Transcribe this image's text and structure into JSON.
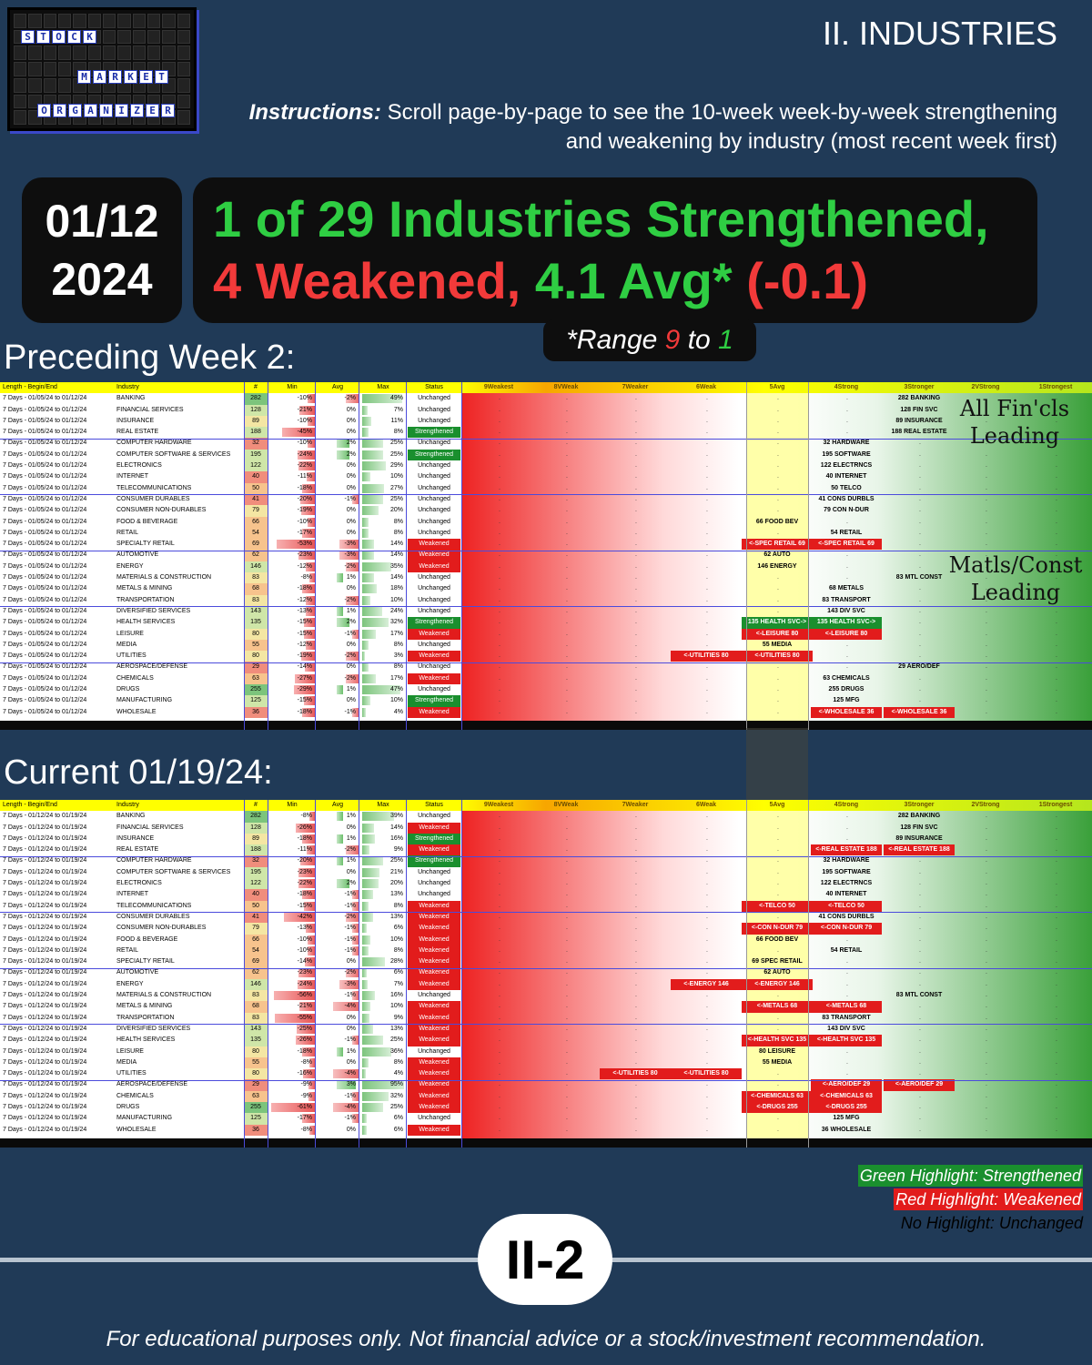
{
  "logo": {
    "rows": [
      [
        "S",
        "T",
        "O",
        "C",
        "K"
      ],
      [
        "M",
        "A",
        "R",
        "K",
        "E",
        "T"
      ],
      [
        "O",
        "R",
        "G",
        "A",
        "N",
        "I",
        "Z",
        "E",
        "R"
      ]
    ]
  },
  "header": {
    "section": "II. INDUSTRIES",
    "instructions_label": "Instructions:",
    "instructions_text": " Scroll page-by-page to see the 10-week week-by-week strengthening and weakening by industry (most recent week first)"
  },
  "date": {
    "day": "01/12",
    "year": "2024"
  },
  "headline": {
    "line1": "1 of 29 Industries Strengthened,",
    "line2a": "4 Weakened, ",
    "line2b": "4.1 Avg*",
    "line2c": " (-0.1)"
  },
  "range": {
    "prefix": "*Range ",
    "low": "9",
    "mid": " to ",
    "high": "1"
  },
  "columns": {
    "len": "Length - Begin/End",
    "ind": "Industry",
    "num": "#",
    "min": "Min",
    "avg": "Avg",
    "max": "Max",
    "status": "Status",
    "zones": [
      "9Weakest",
      "8VWeak",
      "7Weaker",
      "6Weak",
      "5Avg",
      "4Strong",
      "3Stronger",
      "2VStrong",
      "1Strongest"
    ]
  },
  "preceding": {
    "title": "Preceding Week 2:",
    "annotations": [
      "All Fin'cls Leading",
      "Matls/Const Leading"
    ],
    "rows": [
      {
        "len": "7 Days - 01/05/24 to 01/12/24",
        "ind": "BANKING",
        "num": "282",
        "min": "-10%",
        "avg": "-2%",
        "max": "49%",
        "status": "Unchanged",
        "z4": "",
        "z3": "282 BANKING"
      },
      {
        "len": "7 Days - 01/05/24 to 01/12/24",
        "ind": "FINANCIAL SERVICES",
        "num": "128",
        "min": "-21%",
        "avg": "0%",
        "max": "7%",
        "status": "Unchanged",
        "z3": "128 FIN SVC"
      },
      {
        "len": "7 Days - 01/05/24 to 01/12/24",
        "ind": "INSURANCE",
        "num": "89",
        "min": "-10%",
        "avg": "0%",
        "max": "11%",
        "status": "Unchanged",
        "z3": "89 INSURANCE"
      },
      {
        "len": "7 Days - 01/05/24 to 01/12/24",
        "ind": "REAL ESTATE",
        "num": "188",
        "min": "-45%",
        "avg": "0%",
        "max": "8%",
        "status": "Strengthened",
        "z3": "188 REAL ESTATE"
      },
      {
        "len": "7 Days - 01/05/24 to 01/12/24",
        "ind": "COMPUTER HARDWARE",
        "num": "32",
        "min": "-10%",
        "avg": "2%",
        "max": "25%",
        "status": "Unchanged",
        "z4": "32 HARDWARE"
      },
      {
        "len": "7 Days - 01/05/24 to 01/12/24",
        "ind": "COMPUTER SOFTWARE & SERVICES",
        "num": "195",
        "min": "-24%",
        "avg": "2%",
        "max": "25%",
        "status": "Strengthened",
        "z4": "195 SOFTWARE"
      },
      {
        "len": "7 Days - 01/05/24 to 01/12/24",
        "ind": "ELECTRONICS",
        "num": "122",
        "min": "-22%",
        "avg": "0%",
        "max": "29%",
        "status": "Unchanged",
        "z4": "122 ELECTRNCS"
      },
      {
        "len": "7 Days - 01/05/24 to 01/12/24",
        "ind": "INTERNET",
        "num": "40",
        "min": "-11%",
        "avg": "0%",
        "max": "10%",
        "status": "Unchanged",
        "z4": "40 INTERNET"
      },
      {
        "len": "7 Days - 01/05/24 to 01/12/24",
        "ind": "TELECOMMUNICATIONS",
        "num": "50",
        "min": "-18%",
        "avg": "0%",
        "max": "27%",
        "status": "Unchanged",
        "z4": "50 TELCO"
      },
      {
        "len": "7 Days - 01/05/24 to 01/12/24",
        "ind": "CONSUMER DURABLES",
        "num": "41",
        "min": "-20%",
        "avg": "-1%",
        "max": "25%",
        "status": "Unchanged",
        "z4": "41 CONS DURBLS"
      },
      {
        "len": "7 Days - 01/05/24 to 01/12/24",
        "ind": "CONSUMER NON-DURABLES",
        "num": "79",
        "min": "-19%",
        "avg": "0%",
        "max": "20%",
        "status": "Unchanged",
        "z4": "79 CON N-DUR"
      },
      {
        "len": "7 Days - 01/05/24 to 01/12/24",
        "ind": "FOOD & BEVERAGE",
        "num": "66",
        "min": "-10%",
        "avg": "0%",
        "max": "8%",
        "status": "Unchanged",
        "z5": "66 FOOD BEV"
      },
      {
        "len": "7 Days - 01/05/24 to 01/12/24",
        "ind": "RETAIL",
        "num": "54",
        "min": "-17%",
        "avg": "0%",
        "max": "8%",
        "status": "Unchanged",
        "z4": "54 RETAIL"
      },
      {
        "len": "7 Days - 01/05/24 to 01/12/24",
        "ind": "SPECIALTY RETAIL",
        "num": "69",
        "min": "-53%",
        "avg": "-3%",
        "max": "14%",
        "status": "Weakened",
        "z5": "<-SPEC RETAIL 69",
        "z5t": "r",
        "z4": "<-SPEC RETAIL 69",
        "z4t": "r"
      },
      {
        "len": "7 Days - 01/05/24 to 01/12/24",
        "ind": "AUTOMOTIVE",
        "num": "62",
        "min": "-23%",
        "avg": "-3%",
        "max": "14%",
        "status": "Weakened",
        "z5": "62 AUTO"
      },
      {
        "len": "7 Days - 01/05/24 to 01/12/24",
        "ind": "ENERGY",
        "num": "146",
        "min": "-12%",
        "avg": "-2%",
        "max": "35%",
        "status": "Weakened",
        "z5": "146 ENERGY"
      },
      {
        "len": "7 Days - 01/05/24 to 01/12/24",
        "ind": "MATERIALS & CONSTRUCTION",
        "num": "83",
        "min": "-8%",
        "avg": "1%",
        "max": "14%",
        "status": "Unchanged",
        "z3": "83 MTL CONST"
      },
      {
        "len": "7 Days - 01/05/24 to 01/12/24",
        "ind": "METALS & MINING",
        "num": "68",
        "min": "-18%",
        "avg": "0%",
        "max": "18%",
        "status": "Unchanged",
        "z4": "68 METALS"
      },
      {
        "len": "7 Days - 01/05/24 to 01/12/24",
        "ind": "TRANSPORTATION",
        "num": "83",
        "min": "-12%",
        "avg": "-2%",
        "max": "10%",
        "status": "Unchanged",
        "z4": "83 TRANSPORT"
      },
      {
        "len": "7 Days - 01/05/24 to 01/12/24",
        "ind": "DIVERSIFIED SERVICES",
        "num": "143",
        "min": "-13%",
        "avg": "1%",
        "max": "24%",
        "status": "Unchanged",
        "z4": "143 DIV SVC"
      },
      {
        "len": "7 Days - 01/05/24 to 01/12/24",
        "ind": "HEALTH SERVICES",
        "num": "135",
        "min": "-15%",
        "avg": "2%",
        "max": "32%",
        "status": "Strengthened",
        "z5": "135 HEALTH SVC->",
        "z5t": "g",
        "z4": "135 HEALTH SVC->",
        "z4t": "g"
      },
      {
        "len": "7 Days - 01/05/24 to 01/12/24",
        "ind": "LEISURE",
        "num": "80",
        "min": "-15%",
        "avg": "-1%",
        "max": "17%",
        "status": "Weakened",
        "z5": "<-LEISURE 80",
        "z5t": "r",
        "z4": "<-LEISURE 80",
        "z4t": "r"
      },
      {
        "len": "7 Days - 01/05/24 to 01/12/24",
        "ind": "MEDIA",
        "num": "55",
        "min": "-12%",
        "avg": "0%",
        "max": "8%",
        "status": "Unchanged",
        "z5": "55 MEDIA"
      },
      {
        "len": "7 Days - 01/05/24 to 01/12/24",
        "ind": "UTILITIES",
        "num": "80",
        "min": "-19%",
        "avg": "-2%",
        "max": "3%",
        "status": "Weakened",
        "z6": "<-UTILITIES 80",
        "z6t": "r",
        "z5": "<-UTILITIES 80",
        "z5t": "r"
      },
      {
        "len": "7 Days - 01/05/24 to 01/12/24",
        "ind": "AEROSPACE/DEFENSE",
        "num": "29",
        "min": "-14%",
        "avg": "0%",
        "max": "8%",
        "status": "Unchanged",
        "z3": "29 AERO/DEF"
      },
      {
        "len": "7 Days - 01/05/24 to 01/12/24",
        "ind": "CHEMICALS",
        "num": "63",
        "min": "-27%",
        "avg": "-2%",
        "max": "17%",
        "status": "Weakened",
        "z4": "63 CHEMICALS"
      },
      {
        "len": "7 Days - 01/05/24 to 01/12/24",
        "ind": "DRUGS",
        "num": "255",
        "min": "-29%",
        "avg": "1%",
        "max": "47%",
        "status": "Unchanged",
        "z4": "255 DRUGS"
      },
      {
        "len": "7 Days - 01/05/24 to 01/12/24",
        "ind": "MANUFACTURING",
        "num": "125",
        "min": "-15%",
        "avg": "0%",
        "max": "10%",
        "status": "Strengthened",
        "z4": "125 MFG"
      },
      {
        "len": "7 Days - 01/05/24 to 01/12/24",
        "ind": "WHOLESALE",
        "num": "36",
        "min": "-18%",
        "avg": "-1%",
        "max": "4%",
        "status": "Weakened",
        "z4": "<-WHOLESALE 36",
        "z4t": "r",
        "z3": "<-WHOLESALE 36",
        "z3t": "r"
      }
    ]
  },
  "current": {
    "title": "Current 01/19/24:",
    "rows": [
      {
        "len": "7 Days - 01/12/24 to 01/19/24",
        "ind": "BANKING",
        "num": "282",
        "min": "-8%",
        "avg": "1%",
        "max": "39%",
        "status": "Unchanged",
        "z3": "282 BANKING"
      },
      {
        "len": "7 Days - 01/12/24 to 01/19/24",
        "ind": "FINANCIAL SERVICES",
        "num": "128",
        "min": "-26%",
        "avg": "0%",
        "max": "14%",
        "status": "Weakened",
        "z3": "128 FIN SVC"
      },
      {
        "len": "7 Days - 01/12/24 to 01/19/24",
        "ind": "INSURANCE",
        "num": "89",
        "min": "-18%",
        "avg": "1%",
        "max": "16%",
        "status": "Strengthened",
        "z3": "89 INSURANCE"
      },
      {
        "len": "7 Days - 01/12/24 to 01/19/24",
        "ind": "REAL ESTATE",
        "num": "188",
        "min": "-11%",
        "avg": "-2%",
        "max": "9%",
        "status": "Weakened",
        "z4": "<-REAL ESTATE 188",
        "z4t": "r",
        "z3": "<-REAL ESTATE 188",
        "z3t": "r"
      },
      {
        "len": "7 Days - 01/12/24 to 01/19/24",
        "ind": "COMPUTER HARDWARE",
        "num": "32",
        "min": "-20%",
        "avg": "1%",
        "max": "25%",
        "status": "Strengthened",
        "z4": "32 HARDWARE"
      },
      {
        "len": "7 Days - 01/12/24 to 01/19/24",
        "ind": "COMPUTER SOFTWARE & SERVICES",
        "num": "195",
        "min": "-23%",
        "avg": "0%",
        "max": "21%",
        "status": "Unchanged",
        "z4": "195 SOFTWARE"
      },
      {
        "len": "7 Days - 01/12/24 to 01/19/24",
        "ind": "ELECTRONICS",
        "num": "122",
        "min": "-22%",
        "avg": "2%",
        "max": "20%",
        "status": "Unchanged",
        "z4": "122 ELECTRNCS"
      },
      {
        "len": "7 Days - 01/12/24 to 01/19/24",
        "ind": "INTERNET",
        "num": "40",
        "min": "-18%",
        "avg": "-1%",
        "max": "13%",
        "status": "Unchanged",
        "z4": "40 INTERNET"
      },
      {
        "len": "7 Days - 01/12/24 to 01/19/24",
        "ind": "TELECOMMUNICATIONS",
        "num": "50",
        "min": "-15%",
        "avg": "-1%",
        "max": "8%",
        "status": "Weakened",
        "z5": "<-TELCO 50",
        "z5t": "r",
        "z4": "<-TELCO 50",
        "z4t": "r"
      },
      {
        "len": "7 Days - 01/12/24 to 01/19/24",
        "ind": "CONSUMER DURABLES",
        "num": "41",
        "min": "-42%",
        "avg": "-2%",
        "max": "13%",
        "status": "Weakened",
        "z4": "41 CONS DURBLS"
      },
      {
        "len": "7 Days - 01/12/24 to 01/19/24",
        "ind": "CONSUMER NON-DURABLES",
        "num": "79",
        "min": "-13%",
        "avg": "-1%",
        "max": "6%",
        "status": "Weakened",
        "z5": "<-CON N-DUR 79",
        "z5t": "r",
        "z4": "<-CON N-DUR 79",
        "z4t": "r"
      },
      {
        "len": "7 Days - 01/12/24 to 01/19/24",
        "ind": "FOOD & BEVERAGE",
        "num": "66",
        "min": "-10%",
        "avg": "-1%",
        "max": "10%",
        "status": "Weakened",
        "z5": "66 FOOD BEV"
      },
      {
        "len": "7 Days - 01/12/24 to 01/19/24",
        "ind": "RETAIL",
        "num": "54",
        "min": "-10%",
        "avg": "-1%",
        "max": "8%",
        "status": "Weakened",
        "z4": "54 RETAIL"
      },
      {
        "len": "7 Days - 01/12/24 to 01/19/24",
        "ind": "SPECIALTY RETAIL",
        "num": "69",
        "min": "-14%",
        "avg": "0%",
        "max": "28%",
        "status": "Weakened",
        "z5": "69 SPEC RETAIL"
      },
      {
        "len": "7 Days - 01/12/24 to 01/19/24",
        "ind": "AUTOMOTIVE",
        "num": "62",
        "min": "-23%",
        "avg": "-2%",
        "max": "6%",
        "status": "Weakened",
        "z5": "62 AUTO"
      },
      {
        "len": "7 Days - 01/12/24 to 01/19/24",
        "ind": "ENERGY",
        "num": "146",
        "min": "-24%",
        "avg": "-3%",
        "max": "7%",
        "status": "Weakened",
        "z6": "<-ENERGY 146",
        "z6t": "r",
        "z5": "<-ENERGY 146",
        "z5t": "r"
      },
      {
        "len": "7 Days - 01/12/24 to 01/19/24",
        "ind": "MATERIALS & CONSTRUCTION",
        "num": "83",
        "min": "-56%",
        "avg": "-1%",
        "max": "16%",
        "status": "Unchanged",
        "z3": "83 MTL CONST"
      },
      {
        "len": "7 Days - 01/12/24 to 01/19/24",
        "ind": "METALS & MINING",
        "num": "68",
        "min": "-21%",
        "avg": "-4%",
        "max": "10%",
        "status": "Weakened",
        "z5": "<-METALS 68",
        "z5t": "r",
        "z4": "<-METALS 68",
        "z4t": "r"
      },
      {
        "len": "7 Days - 01/12/24 to 01/19/24",
        "ind": "TRANSPORTATION",
        "num": "83",
        "min": "-55%",
        "avg": "0%",
        "max": "9%",
        "status": "Weakened",
        "z4": "83 TRANSPORT"
      },
      {
        "len": "7 Days - 01/12/24 to 01/19/24",
        "ind": "DIVERSIFIED SERVICES",
        "num": "143",
        "min": "-25%",
        "avg": "0%",
        "max": "13%",
        "status": "Weakened",
        "z4": "143 DIV SVC"
      },
      {
        "len": "7 Days - 01/12/24 to 01/19/24",
        "ind": "HEALTH SERVICES",
        "num": "135",
        "min": "-26%",
        "avg": "-1%",
        "max": "25%",
        "status": "Weakened",
        "z5": "<-HEALTH SVC 135",
        "z5t": "r",
        "z4": "<-HEALTH SVC 135",
        "z4t": "r"
      },
      {
        "len": "7 Days - 01/12/24 to 01/19/24",
        "ind": "LEISURE",
        "num": "80",
        "min": "-18%",
        "avg": "1%",
        "max": "36%",
        "status": "Unchanged",
        "z5": "80 LEISURE"
      },
      {
        "len": "7 Days - 01/12/24 to 01/19/24",
        "ind": "MEDIA",
        "num": "55",
        "min": "-8%",
        "avg": "0%",
        "max": "8%",
        "status": "Weakened",
        "z5": "55 MEDIA"
      },
      {
        "len": "7 Days - 01/12/24 to 01/19/24",
        "ind": "UTILITIES",
        "num": "80",
        "min": "-16%",
        "avg": "-4%",
        "max": "4%",
        "status": "Weakened",
        "z7": "<-UTILITIES 80",
        "z7t": "r",
        "z6": "<-UTILITIES 80",
        "z6t": "r"
      },
      {
        "len": "7 Days - 01/12/24 to 01/19/24",
        "ind": "AEROSPACE/DEFENSE",
        "num": "29",
        "min": "-9%",
        "avg": "3%",
        "max": "95%",
        "status": "Weakened",
        "z4": "<-AERO/DEF 29",
        "z4t": "r",
        "z3": "<-AERO/DEF 29",
        "z3t": "r"
      },
      {
        "len": "7 Days - 01/12/24 to 01/19/24",
        "ind": "CHEMICALS",
        "num": "63",
        "min": "-9%",
        "avg": "-1%",
        "max": "32%",
        "status": "Weakened",
        "z5": "<-CHEMICALS 63",
        "z5t": "r",
        "z4": "<-CHEMICALS 63",
        "z4t": "r"
      },
      {
        "len": "7 Days - 01/12/24 to 01/19/24",
        "ind": "DRUGS",
        "num": "255",
        "min": "-61%",
        "avg": "-4%",
        "max": "25%",
        "status": "Weakened",
        "z5": "<-DRUGS 255",
        "z5t": "r",
        "z4": "<-DRUGS 255",
        "z4t": "r"
      },
      {
        "len": "7 Days - 01/12/24 to 01/19/24",
        "ind": "MANUFACTURING",
        "num": "125",
        "min": "-17%",
        "avg": "-1%",
        "max": "6%",
        "status": "Unchanged",
        "z4": "125 MFG"
      },
      {
        "len": "7 Days - 01/12/24 to 01/19/24",
        "ind": "WHOLESALE",
        "num": "36",
        "min": "-8%",
        "avg": "0%",
        "max": "6%",
        "status": "Weakened",
        "z4": "36 WHOLESALE"
      }
    ]
  },
  "legend": {
    "green": "Green Highlight: Strengthened",
    "red": "Red Highlight: Weakened",
    "none": "No Highlight: Unchanged"
  },
  "page_badge": "II-2",
  "footer": "For educational purposes only. Not financial advice or a stock/investment recommendation."
}
